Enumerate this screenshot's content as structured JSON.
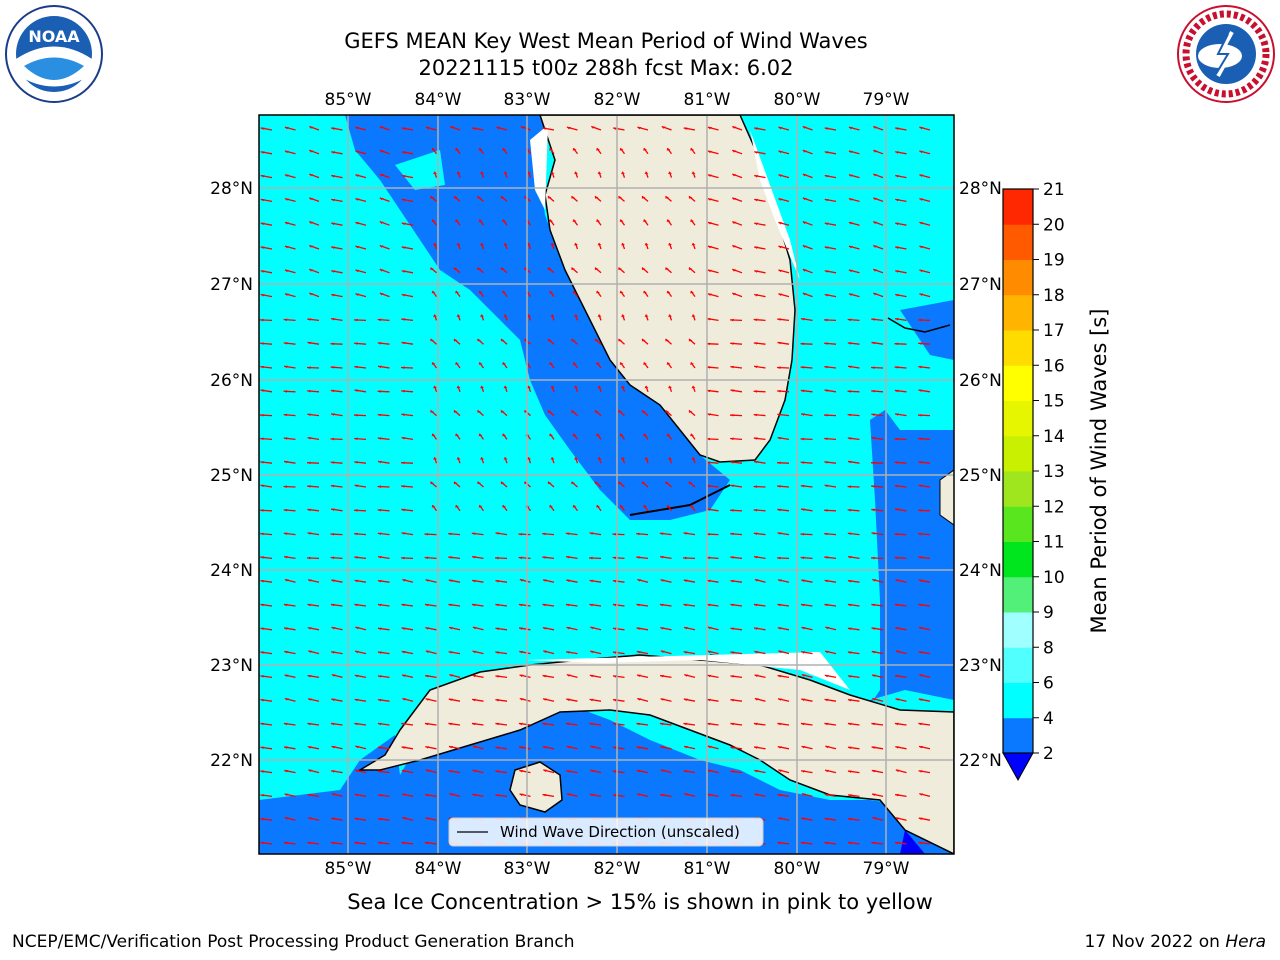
{
  "title": {
    "line1": "GEFS MEAN Key West Mean Period of Wind Waves",
    "line2": "20221115 t00z 288h fcst   Max: 6.02"
  },
  "logos": {
    "noaa_text": "NOAA",
    "noaa_ring_text": "NATIONAL OCEANIC AND ATMOSPHERIC ADMINISTRATION · U.S. DEPARTMENT OF COMMERCE",
    "nws_ring_text": "NATIONAL WEATHER SERVICE"
  },
  "map": {
    "lon_labels": [
      "85°W",
      "84°W",
      "83°W",
      "82°W",
      "81°W",
      "80°W",
      "79°W"
    ],
    "lat_labels": [
      "28°N",
      "27°N",
      "26°N",
      "25°N",
      "24°N",
      "23°N",
      "22°N"
    ],
    "legend_label": "Wind Wave Direction (unscaled)",
    "colors": {
      "land": "#efecdc",
      "period_2_4": "#0a78ff",
      "period_4_6": "#00ffff",
      "arrow": "#ff0000",
      "grid": "#b0b0b0"
    }
  },
  "colorbar": {
    "label": "Mean Period of Wind Waves [s]",
    "ticks": [
      "2",
      "4",
      "6",
      "8",
      "9",
      "10",
      "11",
      "12",
      "13",
      "14",
      "15",
      "16",
      "17",
      "18",
      "19",
      "20",
      "21"
    ],
    "colors": [
      "#0a78ff",
      "#00ffff",
      "#52ffff",
      "#a0ffff",
      "#52f078",
      "#00e61e",
      "#5ae61e",
      "#a0e61e",
      "#c8f000",
      "#e6f500",
      "#ffff00",
      "#ffdc00",
      "#ffb400",
      "#ff8c00",
      "#ff5a00",
      "#ff2800"
    ],
    "under_color": "#0000ff"
  },
  "caption": "Sea Ice Concentration > 15% is shown in pink to yellow",
  "footer": {
    "left": "NCEP/EMC/Verification Post Processing Product Generation Branch",
    "right_date": "17 Nov 2022 on ",
    "right_host": "Hera"
  }
}
